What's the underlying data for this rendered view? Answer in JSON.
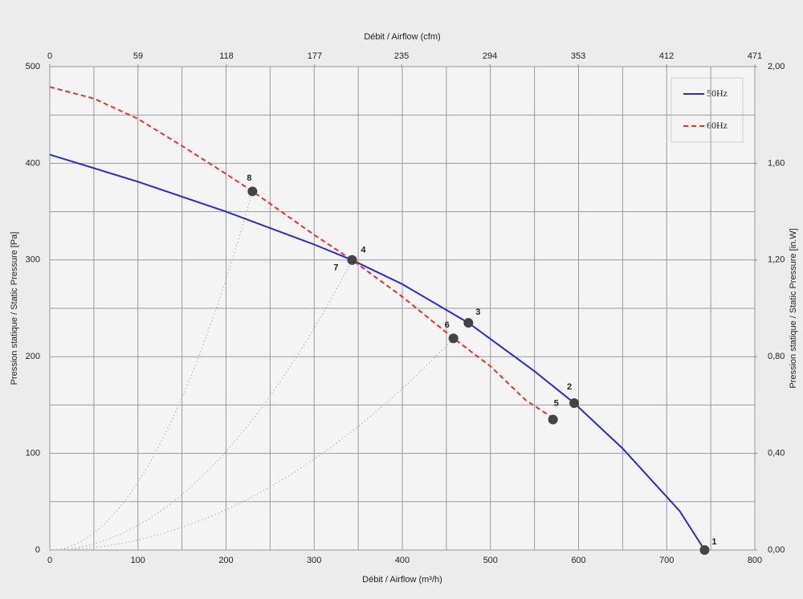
{
  "chart_data": {
    "type": "line",
    "title": "Débit / Airflow (cfm)",
    "xlabel": "Débit / Airflow (m³/h)",
    "ylabel": "Pression statique / Static Pressure [Pa]",
    "y2label": "Pression statique / Static Pressure [in.W]",
    "xlim": [
      0,
      800
    ],
    "xticks": [
      0,
      100,
      200,
      300,
      400,
      500,
      600,
      700,
      800
    ],
    "xminorticks": [
      50,
      150,
      250,
      350,
      450,
      550,
      650,
      750
    ],
    "x2lim": [
      0,
      471
    ],
    "x2ticks": [
      0,
      59,
      118,
      177,
      235,
      294,
      353,
      412,
      471
    ],
    "ylim": [
      0,
      500
    ],
    "yticks": [
      0,
      100,
      200,
      300,
      400,
      500
    ],
    "yminorticks": [
      50,
      150,
      250,
      350,
      450
    ],
    "y2lim": [
      0,
      2
    ],
    "y2ticks": [
      {
        "value": 0,
        "label": "0,00"
      },
      {
        "value": 0.4,
        "label": "0,40"
      },
      {
        "value": 0.8,
        "label": "0,80"
      },
      {
        "value": 1.2,
        "label": "1,20"
      },
      {
        "value": 1.6,
        "label": "1,60"
      },
      {
        "value": 2,
        "label": "2,00"
      }
    ],
    "grid": true,
    "legend": "upper right",
    "series": [
      {
        "name": "50Hz",
        "color": "#2a2ad0",
        "dash": false,
        "x": [
          0,
          100,
          200,
          300,
          343,
          400,
          475,
          550,
          595,
          650,
          715,
          743
        ],
        "values": [
          409,
          381,
          350,
          316,
          300,
          275,
          235,
          185,
          152,
          105,
          40,
          0
        ]
      },
      {
        "name": "60Hz",
        "color": "#e8322a",
        "dash": true,
        "x": [
          0,
          50,
          100,
          150,
          200,
          230,
          300,
          343,
          400,
          458,
          500,
          540,
          572
        ],
        "values": [
          479,
          467,
          446,
          418,
          389,
          371,
          326,
          300,
          262,
          219,
          190,
          155,
          136
        ]
      }
    ],
    "points": [
      {
        "label": "1",
        "x": 743,
        "y": 0
      },
      {
        "label": "2",
        "x": 595,
        "y": 152
      },
      {
        "label": "3",
        "x": 475,
        "y": 235
      },
      {
        "label": "4",
        "x": 343,
        "y": 300
      },
      {
        "label": "5",
        "x": 571,
        "y": 135
      },
      {
        "label": "6",
        "x": 458,
        "y": 219
      },
      {
        "label": "7",
        "x": 343,
        "y": 300
      },
      {
        "label": "8",
        "x": 230,
        "y": 371
      }
    ]
  }
}
